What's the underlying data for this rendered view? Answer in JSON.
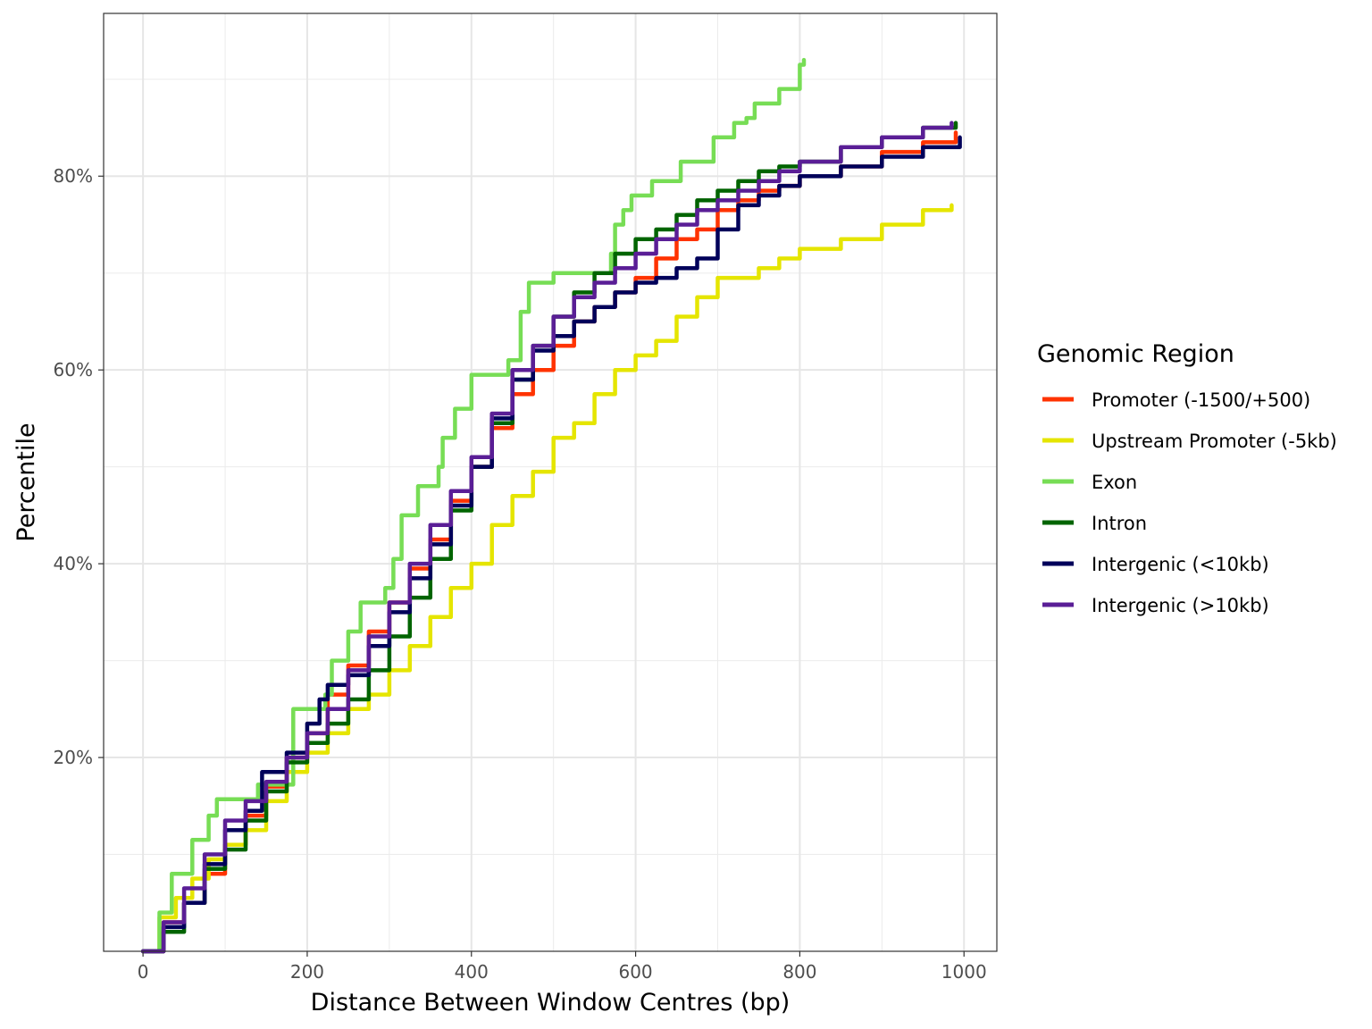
{
  "chart_data": {
    "type": "line",
    "title": "",
    "xlabel": "Distance Between Window Centres (bp)",
    "ylabel": "Percentile",
    "xlim": [
      -48,
      1040
    ],
    "ylim": [
      0,
      0.968
    ],
    "x_ticks": [
      0,
      200,
      400,
      600,
      800,
      1000
    ],
    "x_tick_labels": [
      "0",
      "200",
      "400",
      "600",
      "800",
      "1000"
    ],
    "y_ticks": [
      0.2,
      0.4,
      0.6,
      0.8
    ],
    "y_tick_labels": [
      "20%",
      "40%",
      "60%",
      "80%"
    ],
    "grid": true,
    "legend": {
      "title": "Genomic Region",
      "position": "right"
    },
    "series": [
      {
        "name": "Promoter (-1500/+500)",
        "color": "#FF3300",
        "points": [
          [
            0,
            0.0
          ],
          [
            25,
            0.03
          ],
          [
            50,
            0.05
          ],
          [
            75,
            0.08
          ],
          [
            100,
            0.11
          ],
          [
            125,
            0.14
          ],
          [
            150,
            0.17
          ],
          [
            175,
            0.2
          ],
          [
            200,
            0.225
          ],
          [
            225,
            0.265
          ],
          [
            250,
            0.295
          ],
          [
            275,
            0.33
          ],
          [
            300,
            0.36
          ],
          [
            325,
            0.395
          ],
          [
            350,
            0.425
          ],
          [
            375,
            0.465
          ],
          [
            400,
            0.5
          ],
          [
            425,
            0.54
          ],
          [
            450,
            0.575
          ],
          [
            475,
            0.6
          ],
          [
            500,
            0.625
          ],
          [
            525,
            0.65
          ],
          [
            550,
            0.665
          ],
          [
            575,
            0.68
          ],
          [
            600,
            0.695
          ],
          [
            625,
            0.715
          ],
          [
            650,
            0.735
          ],
          [
            675,
            0.745
          ],
          [
            700,
            0.765
          ],
          [
            725,
            0.775
          ],
          [
            750,
            0.785
          ],
          [
            775,
            0.79
          ],
          [
            800,
            0.8
          ],
          [
            850,
            0.81
          ],
          [
            900,
            0.825
          ],
          [
            950,
            0.835
          ],
          [
            990,
            0.845
          ]
        ]
      },
      {
        "name": "Upstream Promoter (-5kb)",
        "color": "#E5E500",
        "points": [
          [
            0,
            0.0
          ],
          [
            20,
            0.035
          ],
          [
            40,
            0.055
          ],
          [
            60,
            0.075
          ],
          [
            80,
            0.095
          ],
          [
            100,
            0.11
          ],
          [
            125,
            0.125
          ],
          [
            150,
            0.155
          ],
          [
            175,
            0.185
          ],
          [
            200,
            0.205
          ],
          [
            225,
            0.225
          ],
          [
            250,
            0.25
          ],
          [
            275,
            0.265
          ],
          [
            300,
            0.29
          ],
          [
            325,
            0.315
          ],
          [
            350,
            0.345
          ],
          [
            375,
            0.375
          ],
          [
            400,
            0.4
          ],
          [
            425,
            0.44
          ],
          [
            450,
            0.47
          ],
          [
            475,
            0.495
          ],
          [
            500,
            0.53
          ],
          [
            525,
            0.545
          ],
          [
            550,
            0.575
          ],
          [
            575,
            0.6
          ],
          [
            600,
            0.615
          ],
          [
            625,
            0.63
          ],
          [
            650,
            0.655
          ],
          [
            675,
            0.675
          ],
          [
            700,
            0.695
          ],
          [
            750,
            0.705
          ],
          [
            775,
            0.715
          ],
          [
            800,
            0.725
          ],
          [
            850,
            0.735
          ],
          [
            900,
            0.75
          ],
          [
            950,
            0.765
          ],
          [
            985,
            0.77
          ]
        ]
      },
      {
        "name": "Exon",
        "color": "#77DD55",
        "points": [
          [
            0,
            0.0
          ],
          [
            20,
            0.04
          ],
          [
            35,
            0.08
          ],
          [
            60,
            0.115
          ],
          [
            80,
            0.14
          ],
          [
            90,
            0.157
          ],
          [
            140,
            0.172
          ],
          [
            183,
            0.175
          ],
          [
            183,
            0.25
          ],
          [
            222,
            0.265
          ],
          [
            230,
            0.3
          ],
          [
            250,
            0.33
          ],
          [
            265,
            0.36
          ],
          [
            295,
            0.375
          ],
          [
            305,
            0.405
          ],
          [
            315,
            0.45
          ],
          [
            335,
            0.48
          ],
          [
            360,
            0.5
          ],
          [
            365,
            0.53
          ],
          [
            380,
            0.56
          ],
          [
            400,
            0.58
          ],
          [
            400,
            0.595
          ],
          [
            445,
            0.61
          ],
          [
            460,
            0.66
          ],
          [
            470,
            0.69
          ],
          [
            500,
            0.7
          ],
          [
            570,
            0.72
          ],
          [
            575,
            0.75
          ],
          [
            585,
            0.765
          ],
          [
            595,
            0.78
          ],
          [
            620,
            0.795
          ],
          [
            655,
            0.815
          ],
          [
            695,
            0.84
          ],
          [
            720,
            0.855
          ],
          [
            735,
            0.86
          ],
          [
            745,
            0.875
          ],
          [
            775,
            0.89
          ],
          [
            800,
            0.915
          ],
          [
            805,
            0.92
          ]
        ]
      },
      {
        "name": "Intron",
        "color": "#006400",
        "points": [
          [
            0,
            0.0
          ],
          [
            25,
            0.02
          ],
          [
            50,
            0.05
          ],
          [
            75,
            0.085
          ],
          [
            100,
            0.105
          ],
          [
            125,
            0.135
          ],
          [
            150,
            0.165
          ],
          [
            175,
            0.195
          ],
          [
            200,
            0.215
          ],
          [
            225,
            0.235
          ],
          [
            250,
            0.26
          ],
          [
            275,
            0.29
          ],
          [
            300,
            0.325
          ],
          [
            325,
            0.365
          ],
          [
            350,
            0.405
          ],
          [
            375,
            0.455
          ],
          [
            400,
            0.5
          ],
          [
            425,
            0.545
          ],
          [
            450,
            0.59
          ],
          [
            475,
            0.625
          ],
          [
            500,
            0.655
          ],
          [
            525,
            0.68
          ],
          [
            550,
            0.7
          ],
          [
            575,
            0.72
          ],
          [
            600,
            0.735
          ],
          [
            625,
            0.745
          ],
          [
            650,
            0.76
          ],
          [
            675,
            0.775
          ],
          [
            700,
            0.785
          ],
          [
            725,
            0.795
          ],
          [
            750,
            0.805
          ],
          [
            775,
            0.81
          ],
          [
            800,
            0.815
          ],
          [
            850,
            0.83
          ],
          [
            900,
            0.84
          ],
          [
            950,
            0.85
          ],
          [
            990,
            0.855
          ]
        ]
      },
      {
        "name": "Intergenic (<10kb)",
        "color": "#00005A",
        "points": [
          [
            0,
            0.0
          ],
          [
            25,
            0.025
          ],
          [
            50,
            0.05
          ],
          [
            75,
            0.09
          ],
          [
            100,
            0.125
          ],
          [
            125,
            0.145
          ],
          [
            145,
            0.185
          ],
          [
            175,
            0.205
          ],
          [
            200,
            0.235
          ],
          [
            215,
            0.26
          ],
          [
            225,
            0.275
          ],
          [
            250,
            0.285
          ],
          [
            275,
            0.315
          ],
          [
            300,
            0.35
          ],
          [
            325,
            0.385
          ],
          [
            350,
            0.42
          ],
          [
            375,
            0.46
          ],
          [
            400,
            0.5
          ],
          [
            425,
            0.55
          ],
          [
            450,
            0.59
          ],
          [
            475,
            0.62
          ],
          [
            500,
            0.635
          ],
          [
            525,
            0.65
          ],
          [
            550,
            0.665
          ],
          [
            575,
            0.68
          ],
          [
            600,
            0.69
          ],
          [
            625,
            0.695
          ],
          [
            650,
            0.705
          ],
          [
            675,
            0.715
          ],
          [
            700,
            0.745
          ],
          [
            725,
            0.77
          ],
          [
            750,
            0.78
          ],
          [
            775,
            0.79
          ],
          [
            800,
            0.8
          ],
          [
            850,
            0.81
          ],
          [
            900,
            0.82
          ],
          [
            950,
            0.83
          ],
          [
            995,
            0.84
          ]
        ]
      },
      {
        "name": "Intergenic (>10kb)",
        "color": "#5A1E96",
        "points": [
          [
            0,
            0.0
          ],
          [
            25,
            0.03
          ],
          [
            50,
            0.065
          ],
          [
            75,
            0.1
          ],
          [
            100,
            0.135
          ],
          [
            125,
            0.155
          ],
          [
            150,
            0.175
          ],
          [
            175,
            0.2
          ],
          [
            200,
            0.225
          ],
          [
            225,
            0.25
          ],
          [
            250,
            0.29
          ],
          [
            275,
            0.325
          ],
          [
            300,
            0.36
          ],
          [
            325,
            0.4
          ],
          [
            350,
            0.44
          ],
          [
            375,
            0.475
          ],
          [
            400,
            0.51
          ],
          [
            425,
            0.555
          ],
          [
            450,
            0.6
          ],
          [
            475,
            0.625
          ],
          [
            500,
            0.655
          ],
          [
            525,
            0.675
          ],
          [
            550,
            0.69
          ],
          [
            575,
            0.705
          ],
          [
            600,
            0.72
          ],
          [
            625,
            0.735
          ],
          [
            650,
            0.75
          ],
          [
            675,
            0.765
          ],
          [
            700,
            0.775
          ],
          [
            725,
            0.785
          ],
          [
            750,
            0.795
          ],
          [
            775,
            0.805
          ],
          [
            800,
            0.815
          ],
          [
            850,
            0.83
          ],
          [
            900,
            0.84
          ],
          [
            950,
            0.85
          ],
          [
            985,
            0.855
          ]
        ]
      }
    ]
  }
}
